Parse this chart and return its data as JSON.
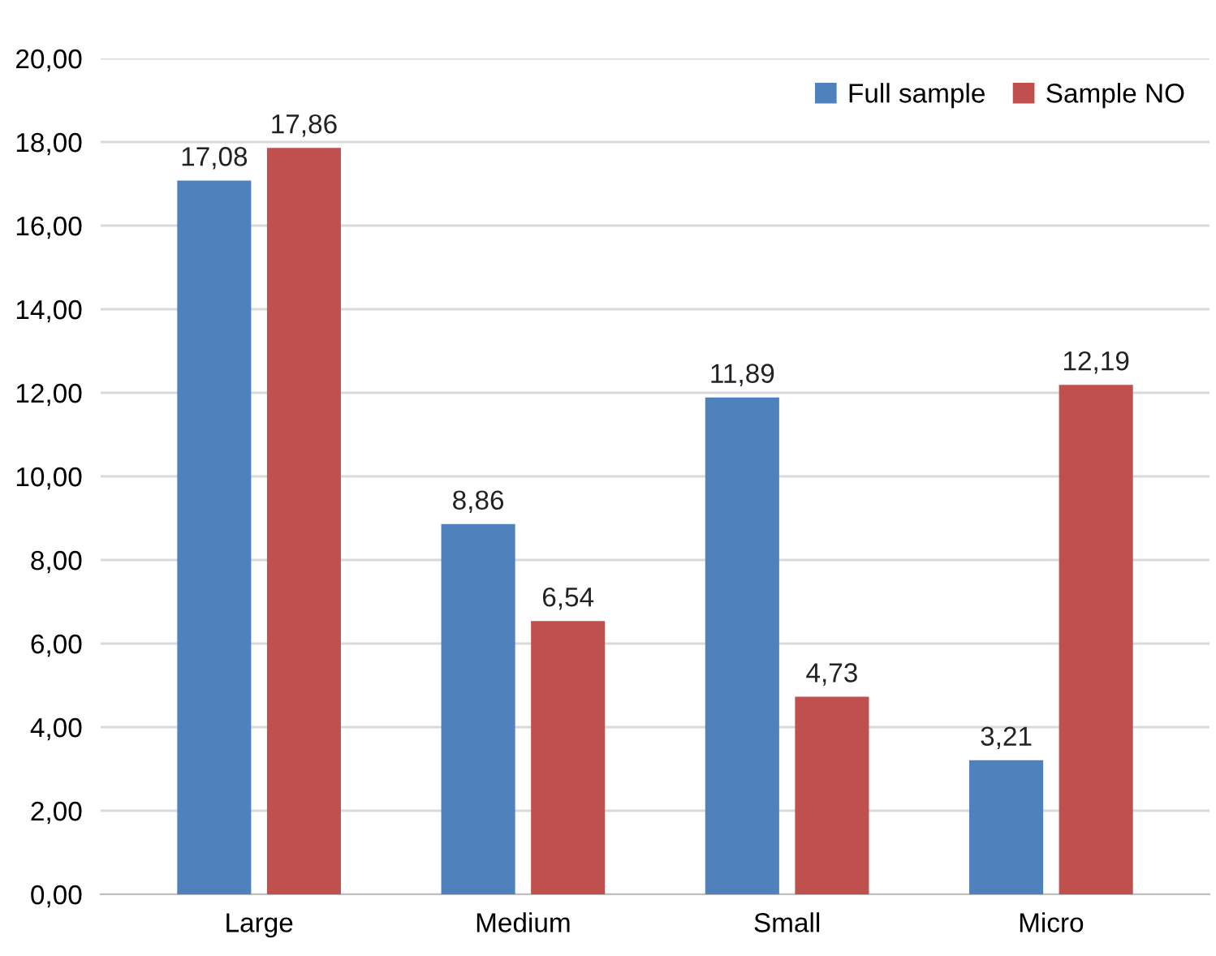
{
  "chart_data": {
    "type": "bar",
    "categories": [
      "Large",
      "Medium",
      "Small",
      "Micro"
    ],
    "series": [
      {
        "name": "Full sample",
        "color": "#4f81bd",
        "values": [
          17.08,
          8.86,
          11.89,
          3.21
        ],
        "value_labels": [
          "17,08",
          "8,86",
          "11,89",
          "3,21"
        ]
      },
      {
        "name": "Sample NO",
        "color": "#c0504d",
        "values": [
          17.86,
          6.54,
          4.73,
          12.19
        ],
        "value_labels": [
          "17,86",
          "6,54",
          "4,73",
          "12,19"
        ]
      }
    ],
    "ylim": [
      0,
      20
    ],
    "yticks": [
      {
        "value": 0,
        "label": "0,00"
      },
      {
        "value": 2,
        "label": "2,00"
      },
      {
        "value": 4,
        "label": "4,00"
      },
      {
        "value": 6,
        "label": "6,00"
      },
      {
        "value": 8,
        "label": "8,00"
      },
      {
        "value": 10,
        "label": "10,00"
      },
      {
        "value": 12,
        "label": "12,00"
      },
      {
        "value": 14,
        "label": "14,00"
      },
      {
        "value": 16,
        "label": "16,00"
      },
      {
        "value": 18,
        "label": "18,00"
      },
      {
        "value": 20,
        "label": "20,00"
      }
    ],
    "grid": "y",
    "legend": "top right"
  }
}
